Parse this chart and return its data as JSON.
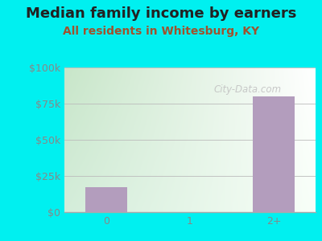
{
  "title": "Median family income by earners",
  "subtitle": "All residents in Whitesburg, KY",
  "categories": [
    "0",
    "1",
    "2+"
  ],
  "values": [
    17000,
    0,
    80000
  ],
  "bar_color": "#b39dbd",
  "background_outer": "#00f0f0",
  "title_color": "#222222",
  "subtitle_color": "#a0522d",
  "tick_color": "#888888",
  "ylim": [
    0,
    100000
  ],
  "yticks": [
    0,
    25000,
    50000,
    75000,
    100000
  ],
  "ytick_labels": [
    "$0",
    "$25k",
    "$50k",
    "$75k",
    "$100k"
  ],
  "watermark": "City-Data.com",
  "title_fontsize": 13,
  "subtitle_fontsize": 10,
  "tick_fontsize": 9,
  "gradient_topleft": "#d4edda",
  "gradient_bottomright": "#f8fff8"
}
